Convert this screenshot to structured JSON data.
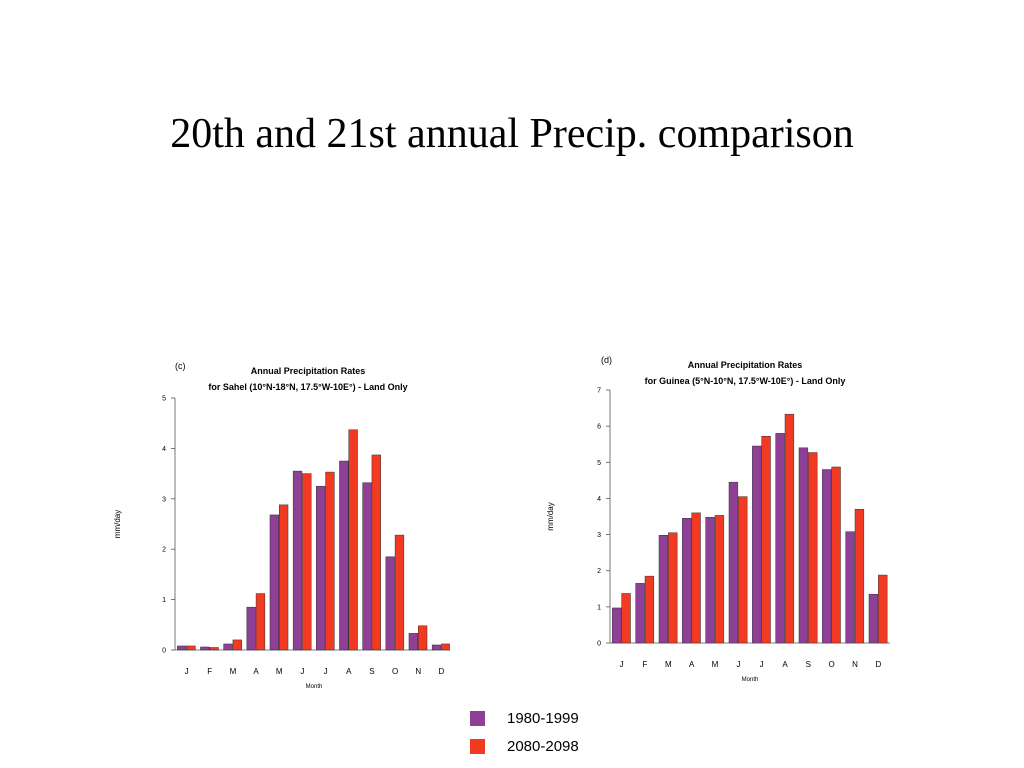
{
  "slide": {
    "title": "20th and 21st annual Precip. comparison"
  },
  "colors": {
    "series_1980": "#8e3f96",
    "series_2080": "#f23a22"
  },
  "legend": [
    {
      "label": "1980-1999",
      "color": "#8e3f96"
    },
    {
      "label": "2080-2098",
      "color": "#f23a22"
    }
  ],
  "chart_data": [
    {
      "type": "bar",
      "panel": "(c)",
      "title": "Annual  Precipitation  Rates",
      "subtitle": "for Sahel (10°N-18°N, 17.5°W-10E°)   - Land Only",
      "xlabel": "Month",
      "ylabel": "mm/day",
      "ylim": [
        0,
        5
      ],
      "yticks": [
        0,
        1,
        2,
        3,
        4,
        5
      ],
      "categories": [
        "J",
        "F",
        "M",
        "A",
        "M",
        "J",
        "J",
        "A",
        "S",
        "O",
        "N",
        "D"
      ],
      "series": [
        {
          "name": "1980-1999",
          "values": [
            0.08,
            0.06,
            0.12,
            0.85,
            2.68,
            3.55,
            3.25,
            3.75,
            3.32,
            1.85,
            0.33,
            0.1
          ]
        },
        {
          "name": "2080-2098",
          "values": [
            0.08,
            0.05,
            0.2,
            1.12,
            2.88,
            3.5,
            3.53,
            4.37,
            3.87,
            2.28,
            0.48,
            0.12
          ]
        }
      ],
      "grid": false
    },
    {
      "type": "bar",
      "panel": "(d)",
      "title": "Annual  Precipitation  Rates",
      "subtitle": "for Guinea (5°N-10°N, 17.5°W-10E°)   - Land Only",
      "xlabel": "Month",
      "ylabel": "mm/day",
      "ylim": [
        0,
        7
      ],
      "yticks": [
        0,
        1,
        2,
        3,
        4,
        5,
        6,
        7
      ],
      "categories": [
        "J",
        "F",
        "M",
        "A",
        "M",
        "J",
        "J",
        "A",
        "S",
        "O",
        "N",
        "D"
      ],
      "series": [
        {
          "name": "1980-1999",
          "values": [
            0.97,
            1.65,
            2.98,
            3.45,
            3.48,
            4.45,
            5.45,
            5.8,
            5.4,
            4.8,
            3.08,
            1.35
          ]
        },
        {
          "name": "2080-2098",
          "values": [
            1.37,
            1.85,
            3.05,
            3.6,
            3.53,
            4.05,
            5.72,
            6.33,
            5.27,
            4.87,
            3.7,
            1.88
          ]
        }
      ],
      "grid": false
    }
  ]
}
